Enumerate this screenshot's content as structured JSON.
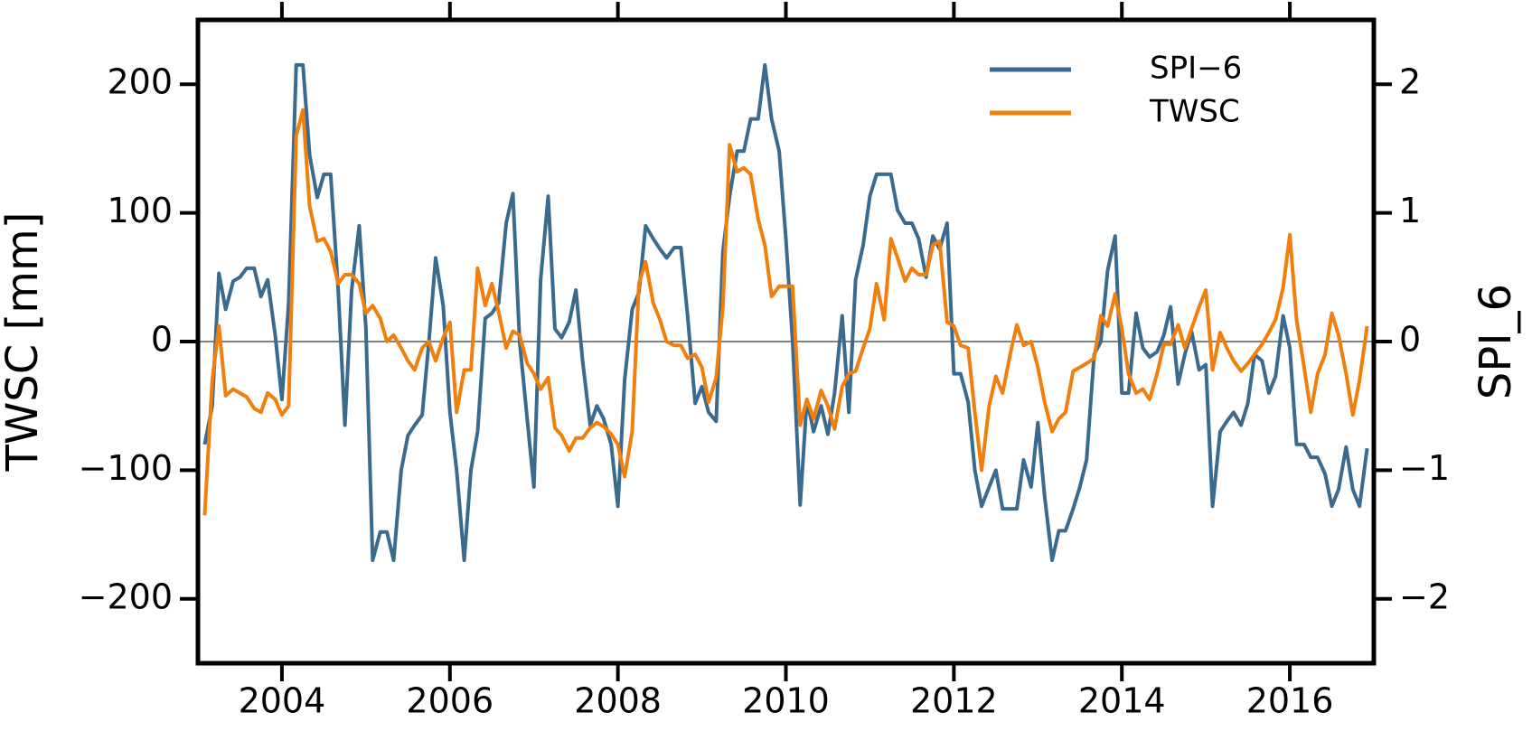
{
  "chart_data": {
    "type": "line",
    "y_label": "TWSC [mm]",
    "y2_label": "SPI_6",
    "xlim": [
      2003,
      2017
    ],
    "xticks": [
      2004,
      2006,
      2008,
      2010,
      2012,
      2014,
      2016
    ],
    "ylim": [
      -250,
      250
    ],
    "yticks": [
      {
        "value": -200,
        "label": "−200"
      },
      {
        "value": -100,
        "label": "−100"
      },
      0,
      100,
      200
    ],
    "y2lim": [
      -2.5,
      2.5
    ],
    "y2ticks": [
      {
        "value": -2,
        "label": "−2"
      },
      {
        "value": -1,
        "label": "−1"
      },
      0,
      1,
      2
    ],
    "legend": "upper right",
    "x": [
      2003.08,
      2003.17,
      2003.25,
      2003.33,
      2003.42,
      2003.5,
      2003.58,
      2003.67,
      2003.75,
      2003.83,
      2003.92,
      2004.0,
      2004.08,
      2004.17,
      2004.25,
      2004.33,
      2004.42,
      2004.5,
      2004.58,
      2004.67,
      2004.75,
      2004.83,
      2004.92,
      2005.0,
      2005.08,
      2005.17,
      2005.25,
      2005.33,
      2005.42,
      2005.5,
      2005.58,
      2005.67,
      2005.75,
      2005.83,
      2005.92,
      2006.0,
      2006.08,
      2006.17,
      2006.25,
      2006.33,
      2006.42,
      2006.5,
      2006.58,
      2006.67,
      2006.75,
      2006.83,
      2006.92,
      2007.0,
      2007.08,
      2007.17,
      2007.25,
      2007.33,
      2007.42,
      2007.5,
      2007.58,
      2007.67,
      2007.75,
      2007.83,
      2007.92,
      2008.0,
      2008.08,
      2008.17,
      2008.25,
      2008.33,
      2008.42,
      2008.5,
      2008.58,
      2008.67,
      2008.75,
      2008.83,
      2008.92,
      2009.0,
      2009.08,
      2009.17,
      2009.25,
      2009.33,
      2009.42,
      2009.5,
      2009.58,
      2009.67,
      2009.75,
      2009.83,
      2009.92,
      2010.0,
      2010.08,
      2010.17,
      2010.25,
      2010.33,
      2010.42,
      2010.5,
      2010.58,
      2010.67,
      2010.75,
      2010.83,
      2010.92,
      2011.0,
      2011.08,
      2011.17,
      2011.25,
      2011.33,
      2011.42,
      2011.5,
      2011.58,
      2011.67,
      2011.75,
      2011.83,
      2011.92,
      2012.0,
      2012.08,
      2012.17,
      2012.25,
      2012.33,
      2012.42,
      2012.5,
      2012.58,
      2012.67,
      2012.75,
      2012.83,
      2012.92,
      2013.0,
      2013.08,
      2013.17,
      2013.25,
      2013.33,
      2013.42,
      2013.5,
      2013.58,
      2013.67,
      2013.75,
      2013.83,
      2013.92,
      2014.0,
      2014.08,
      2014.17,
      2014.25,
      2014.33,
      2014.42,
      2014.5,
      2014.58,
      2014.67,
      2014.75,
      2014.83,
      2014.92,
      2015.0,
      2015.08,
      2015.17,
      2015.25,
      2015.33,
      2015.42,
      2015.5,
      2015.58,
      2015.67,
      2015.75,
      2015.83,
      2015.92,
      2016.0,
      2016.08,
      2016.17,
      2016.25,
      2016.33,
      2016.42,
      2016.5,
      2016.58,
      2016.67,
      2016.75,
      2016.83,
      2016.92
    ],
    "series": [
      {
        "name": "SPI−6",
        "color": "#3b6a8f",
        "axis": "y2",
        "values": [
          -0.8,
          -0.5,
          0.53,
          0.25,
          0.47,
          0.5,
          0.57,
          0.57,
          0.35,
          0.48,
          0.05,
          -0.45,
          0.3,
          2.15,
          2.15,
          1.45,
          1.12,
          1.3,
          1.3,
          0.4,
          -0.65,
          0.4,
          0.9,
          0.1,
          -1.7,
          -1.48,
          -1.48,
          -1.7,
          -1,
          -0.73,
          -0.65,
          -0.57,
          0,
          0.65,
          0.28,
          -0.55,
          -1,
          -1.7,
          -1,
          -0.7,
          0.18,
          0.22,
          0.3,
          0.92,
          1.15,
          0,
          -0.6,
          -1.13,
          0.48,
          1.13,
          0.1,
          0.03,
          0.15,
          0.4,
          -0.15,
          -0.65,
          -0.5,
          -0.6,
          -0.8,
          -1.28,
          -0.3,
          0.25,
          0.38,
          0.9,
          0.8,
          0.72,
          0.65,
          0.73,
          0.73,
          0.2,
          -0.48,
          -0.35,
          -0.55,
          -0.62,
          0.7,
          1.13,
          1.48,
          1.48,
          1.73,
          1.73,
          2.15,
          1.73,
          1.48,
          0.8,
          0,
          -1.27,
          -0.45,
          -0.7,
          -0.5,
          -0.72,
          -0.4,
          0.2,
          -0.55,
          0.48,
          0.75,
          1.13,
          1.3,
          1.3,
          1.3,
          1.02,
          0.92,
          0.92,
          0.8,
          0.5,
          0.82,
          0.72,
          0.92,
          -0.25,
          -0.25,
          -0.47,
          -1,
          -1.28,
          -1.13,
          -1,
          -1.3,
          -1.3,
          -1.3,
          -0.92,
          -1.13,
          -0.63,
          -1.2,
          -1.7,
          -1.47,
          -1.47,
          -1.3,
          -1.13,
          -0.92,
          -0.1,
          0,
          0.55,
          0.82,
          -0.4,
          -0.4,
          0.22,
          -0.05,
          -0.12,
          -0.08,
          0.05,
          0.27,
          -0.33,
          -0.1,
          0.08,
          -0.22,
          -0.18,
          -1.28,
          -0.7,
          -0.62,
          -0.55,
          -0.65,
          -0.48,
          -0.1,
          -0.15,
          -0.4,
          -0.27,
          0.2,
          -0.05,
          -0.8,
          -0.8,
          -0.9,
          -0.9,
          -1.03,
          -1.28,
          -1.15,
          -0.82,
          -1.15,
          -1.28,
          -0.83
        ]
      },
      {
        "name": "TWSC",
        "color": "#f07f0e",
        "values": [
          -135,
          -30,
          12,
          -42,
          -37,
          -40,
          -43,
          -52,
          -55,
          -40,
          -45,
          -57,
          -50,
          160,
          180,
          105,
          78,
          80,
          70,
          45,
          52,
          52,
          45,
          22,
          28,
          18,
          0,
          5,
          -5,
          -15,
          -22,
          -5,
          0,
          -15,
          3,
          15,
          -55,
          -22,
          -22,
          57,
          28,
          45,
          23,
          -5,
          8,
          5,
          -17,
          -25,
          -37,
          -28,
          -67,
          -73,
          -85,
          -75,
          -75,
          -67,
          -63,
          -66,
          -72,
          -80,
          -105,
          -70,
          45,
          62,
          30,
          17,
          0,
          -3,
          -3,
          -13,
          -10,
          -20,
          -47,
          -28,
          27,
          153,
          132,
          135,
          130,
          95,
          75,
          35,
          43,
          43,
          43,
          -65,
          -45,
          -60,
          -38,
          -50,
          -68,
          -35,
          -25,
          -23,
          -5,
          10,
          45,
          17,
          80,
          65,
          47,
          57,
          52,
          52,
          75,
          78,
          15,
          12,
          -3,
          -5,
          -55,
          -100,
          -50,
          -27,
          -40,
          -10,
          13,
          -3,
          0,
          -20,
          -47,
          -70,
          -60,
          -55,
          -23,
          -20,
          -17,
          -13,
          20,
          12,
          37,
          10,
          -25,
          -40,
          -37,
          -45,
          -25,
          -2,
          -2,
          13,
          -5,
          10,
          27,
          40,
          -22,
          7,
          -5,
          -15,
          -23,
          -17,
          -10,
          -2,
          7,
          17,
          42,
          83,
          17,
          -20,
          -55,
          -25,
          -10,
          22,
          5,
          -25,
          -57,
          -30,
          12
        ]
      }
    ]
  }
}
